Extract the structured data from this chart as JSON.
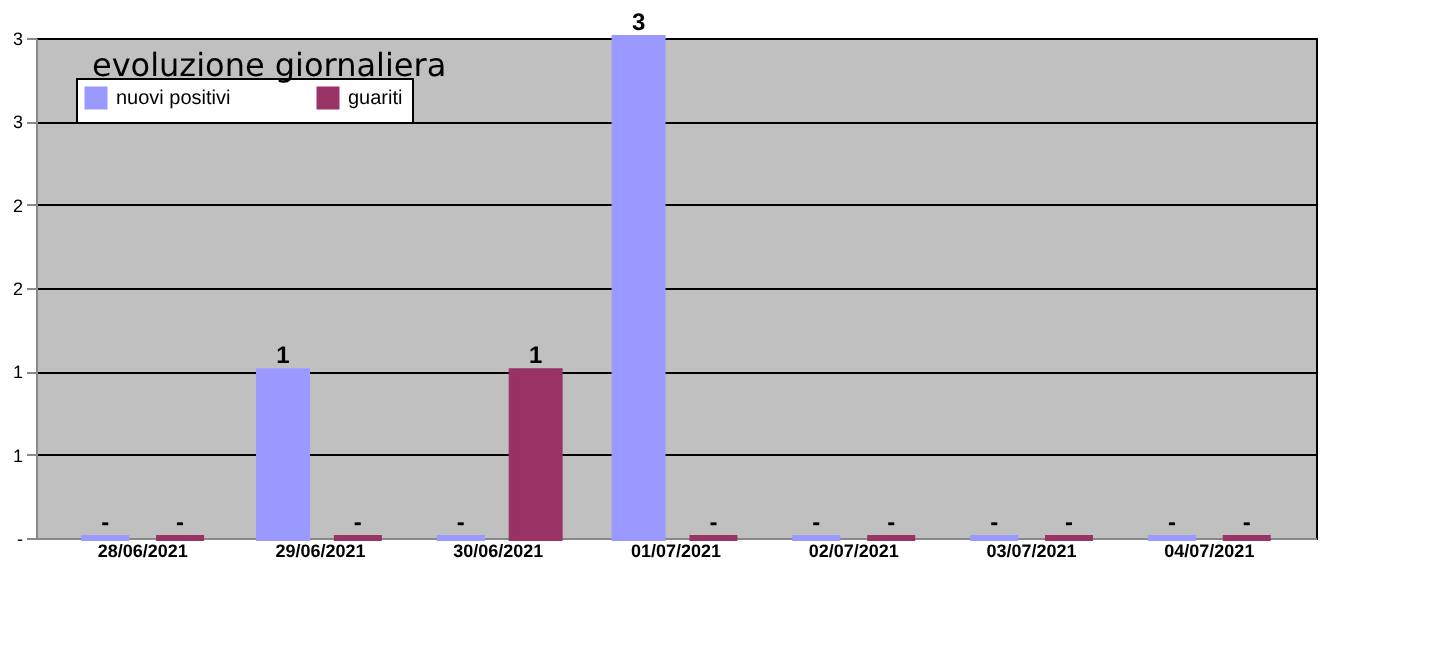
{
  "chart_data": {
    "type": "bar",
    "title": "evoluzione giornaliera",
    "categories": [
      "28/06/2021",
      "29/06/2021",
      "30/06/2021",
      "01/07/2021",
      "02/07/2021",
      "03/07/2021",
      "04/07/2021"
    ],
    "series": [
      {
        "name": "nuovi positivi",
        "color": "#9999ff",
        "values": [
          0,
          1,
          0,
          3,
          0,
          0,
          0
        ],
        "value_labels": [
          "-",
          "1",
          "-",
          "3",
          "-",
          "-",
          "-"
        ]
      },
      {
        "name": "guariti",
        "color": "#993366",
        "values": [
          0,
          0,
          1,
          0,
          0,
          0,
          0
        ],
        "value_labels": [
          "-",
          "-",
          "1",
          "-",
          "-",
          "-",
          "-"
        ]
      }
    ],
    "ylim": [
      0,
      3
    ],
    "yticks": [
      {
        "value": 0,
        "label": "-"
      },
      {
        "value": 0.5,
        "label": "1"
      },
      {
        "value": 1,
        "label": "1"
      },
      {
        "value": 1.5,
        "label": "2"
      },
      {
        "value": 2,
        "label": "2"
      },
      {
        "value": 2.5,
        "label": "3"
      },
      {
        "value": 3,
        "label": "3"
      }
    ],
    "grid": "y",
    "legend": "top left"
  }
}
